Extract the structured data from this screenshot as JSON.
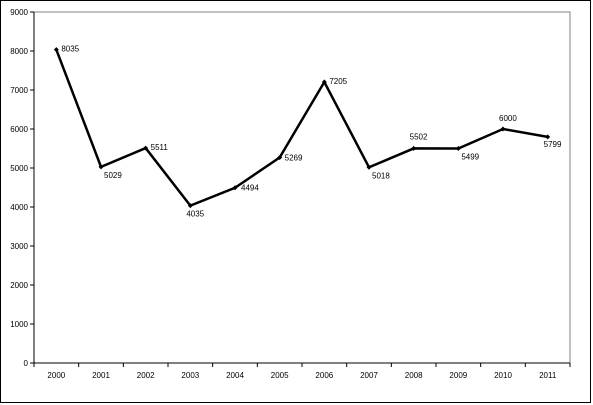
{
  "chart_data": {
    "type": "line",
    "title": "",
    "xlabel": "",
    "ylabel": "",
    "categories": [
      "2000",
      "2001",
      "2002",
      "2003",
      "2004",
      "2005",
      "2006",
      "2007",
      "2008",
      "2009",
      "2010",
      "2011"
    ],
    "series": [
      {
        "values": [
          8035,
          5029,
          5511,
          4035,
          4494,
          5269,
          7205,
          5018,
          5502,
          5499,
          6000,
          5799
        ]
      }
    ],
    "data_labels": [
      "8035",
      "5029",
      "5511",
      "4035",
      "4494",
      "5269",
      "7205",
      "5018",
      "5502",
      "5499",
      "6000",
      "5799"
    ],
    "ylim": [
      0,
      9000
    ],
    "yticks": [
      0,
      1000,
      2000,
      3000,
      4000,
      5000,
      6000,
      7000,
      8000,
      9000
    ],
    "ytick_labels": [
      "0",
      "1000",
      "2000",
      "3000",
      "4000",
      "5000",
      "6000",
      "7000",
      "8000",
      "9000"
    ],
    "grid": false,
    "legend": "none",
    "line_color": "#000000",
    "marker": "diamond"
  }
}
